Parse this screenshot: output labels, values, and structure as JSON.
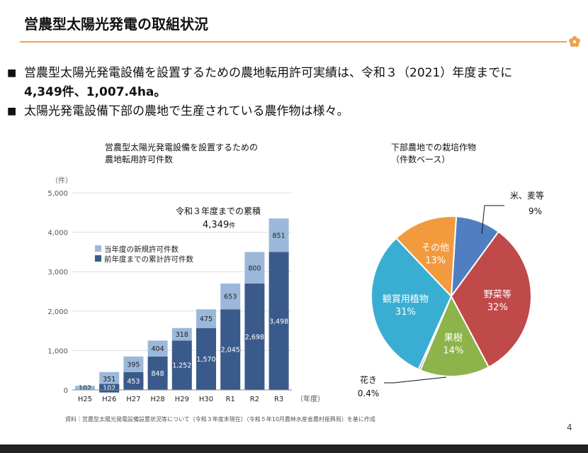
{
  "page": {
    "title": "営農型太陽光発電の取組状況",
    "bullets": [
      {
        "marker": "■",
        "text": "営農型太陽光発電設備を設置するための農地転用許可実績は、令和３（2021）年度までに",
        "bold": "4,349件、1,007.4ha。"
      },
      {
        "marker": "■",
        "text": "太陽光発電設備下部の農地で生産されている農作物は様々。",
        "bold": ""
      }
    ],
    "source": "資料｜営農型太陽光発電設備設置状況等について（令和３年度末現在）（令和５年10月農林水産省農村振興局）を基に作成",
    "page_number": "4",
    "colors": {
      "accent": "#f0a050",
      "bar_new": "#9bb8da",
      "bar_cum": "#3b5a8c"
    }
  },
  "chart_data": [
    {
      "type": "bar",
      "stacked": true,
      "title_lines": [
        "営農型太陽光発電設備を設置するための",
        "農地転用許可件数"
      ],
      "unit_label": "（件）",
      "xlabel": "（年度）",
      "categories": [
        "H25",
        "H26",
        "H27",
        "H28",
        "H29",
        "H30",
        "R1",
        "R2",
        "R3"
      ],
      "y_ticks": [
        "0",
        "1,000",
        "2,000",
        "3,000",
        "4,000",
        "5,000"
      ],
      "ylim": [
        0,
        5000
      ],
      "series": [
        {
          "name": "前年度までの累計許可件数",
          "values": [
            0,
            102,
            453,
            848,
            1252,
            1570,
            2045,
            2698,
            3498
          ],
          "labels": [
            "",
            "102",
            "453",
            "848",
            "1,252",
            "1,570",
            "2,045",
            "2,698",
            "3,498"
          ]
        },
        {
          "name": "当年度の新規許可件数",
          "values": [
            102,
            351,
            395,
            404,
            318,
            475,
            653,
            800,
            851
          ],
          "labels": [
            "102",
            "351",
            "395",
            "404",
            "318",
            "475",
            "653",
            "800",
            "851"
          ]
        }
      ],
      "legend": [
        "当年度の新規許可件数",
        "前年度までの累計許可件数"
      ],
      "annotation": {
        "line1": "令和３年度までの累積",
        "line2": "4,349",
        "unit": "件"
      }
    },
    {
      "type": "pie",
      "title_lines": [
        "下部農地での栽培作物",
        "（件数ベース）"
      ],
      "slices": [
        {
          "label": "米、麦等",
          "pct": 9,
          "pct_label": "9%",
          "color": "#4f7fc0"
        },
        {
          "label": "野菜等",
          "pct": 32,
          "pct_label": "32%",
          "color": "#c0494a"
        },
        {
          "label": "果樹",
          "pct": 14,
          "pct_label": "14%",
          "color": "#8db44a"
        },
        {
          "label": "花き",
          "pct": 0.4,
          "pct_label": "0.4%",
          "color": "#7a5aa6"
        },
        {
          "label": "観賞用植物",
          "pct": 31,
          "pct_label": "31%",
          "color": "#3aaed2"
        },
        {
          "label": "その他",
          "pct": 13,
          "pct_label": "13%",
          "color": "#f19a3e"
        }
      ]
    }
  ]
}
